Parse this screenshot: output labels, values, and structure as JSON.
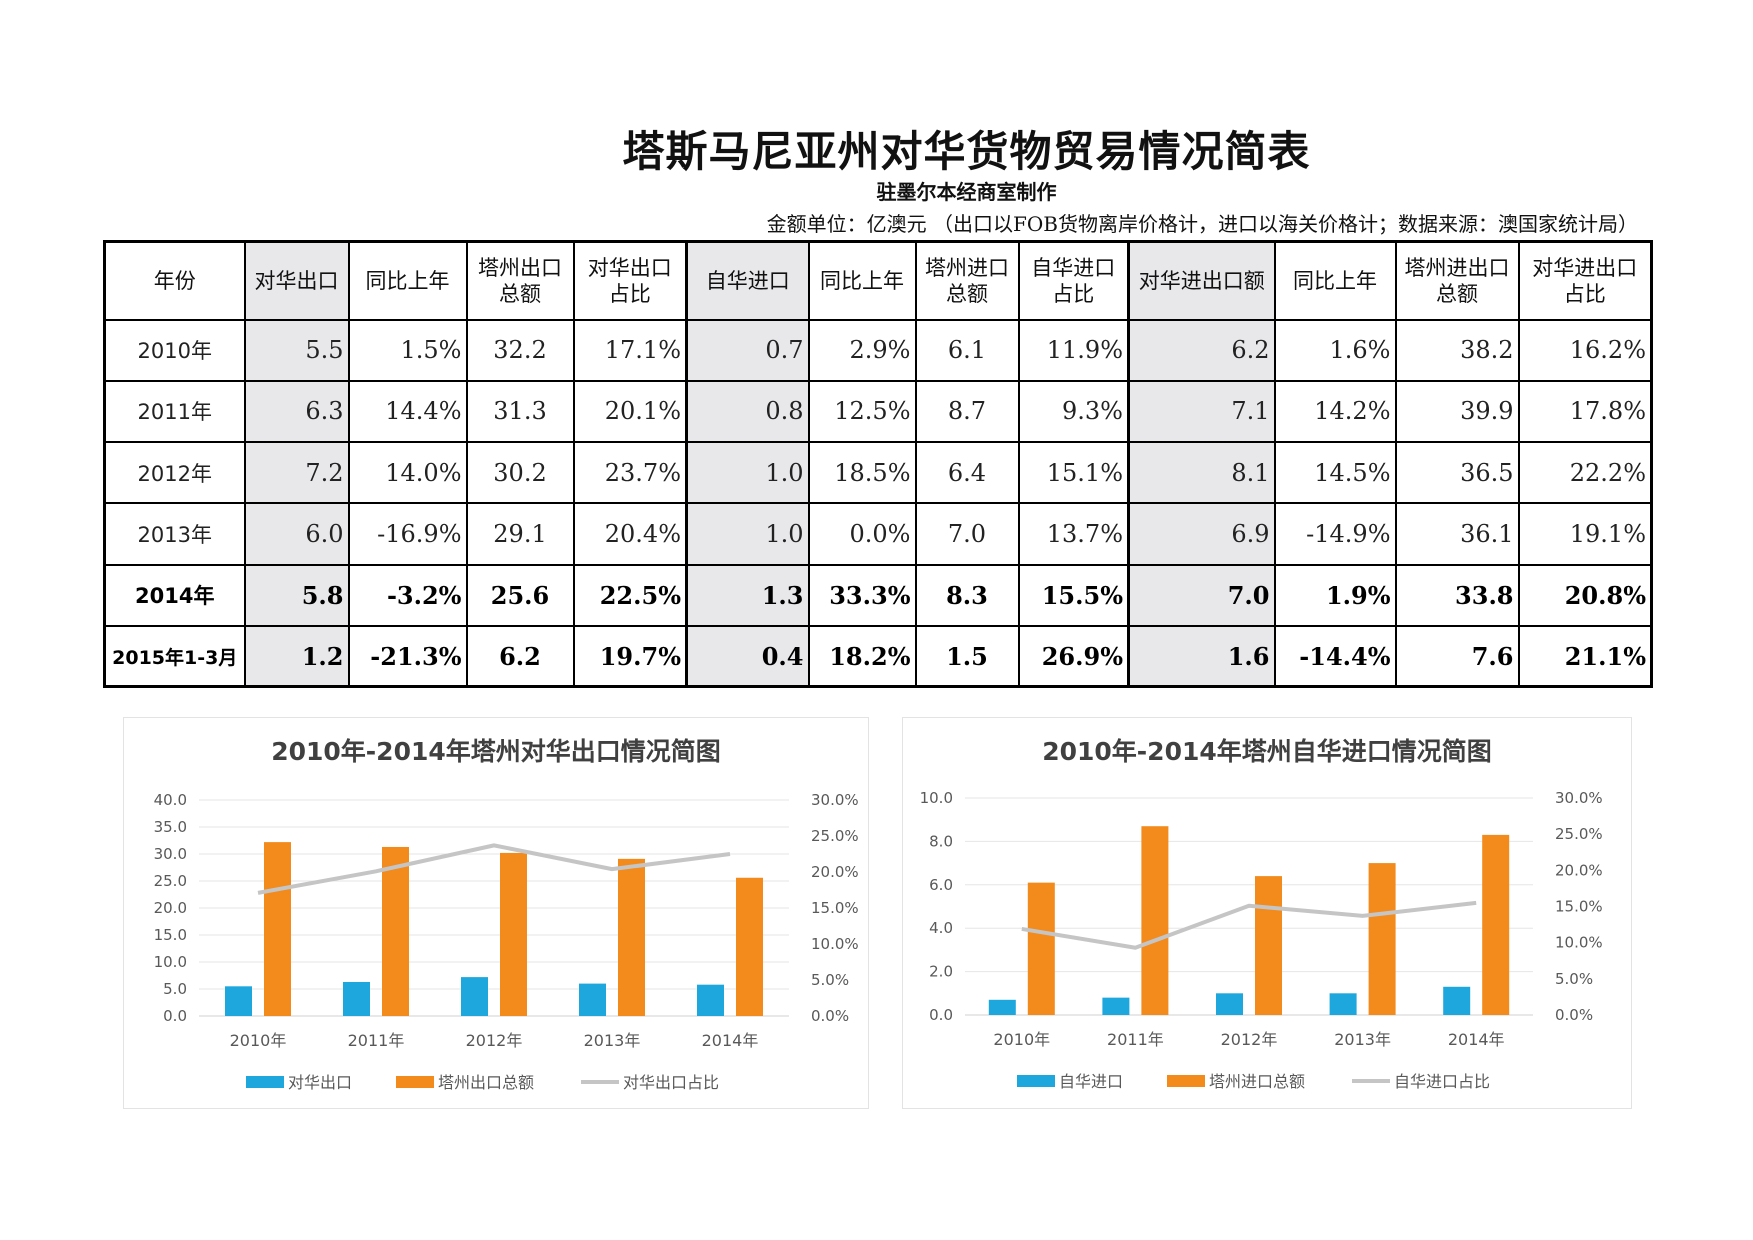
{
  "title": "塔斯马尼亚州对华货物贸易情况简表",
  "subtitle": "驻墨尔本经商室制作",
  "unit_note": "金额单位：亿澳元 （出口以FOB货物离岸价格计，进口以海关价格计；数据来源：澳国家统计局）",
  "table": {
    "headers": [
      "年份",
      "对华出口",
      "同比上年",
      "塔州出口总额",
      "对华出口占比",
      "自华进口",
      "同比上年",
      "塔州进口总额",
      "自华进口占比",
      "对华进出口额",
      "同比上年",
      "塔州进出口总额",
      "对华进出口占比"
    ],
    "rows": [
      [
        "2010年",
        "5.5",
        "1.5%",
        "32.2",
        "17.1%",
        "0.7",
        "2.9%",
        "6.1",
        "11.9%",
        "6.2",
        "1.6%",
        "38.2",
        "16.2%"
      ],
      [
        "2011年",
        "6.3",
        "14.4%",
        "31.3",
        "20.1%",
        "0.8",
        "12.5%",
        "8.7",
        "9.3%",
        "7.1",
        "14.2%",
        "39.9",
        "17.8%"
      ],
      [
        "2012年",
        "7.2",
        "14.0%",
        "30.2",
        "23.7%",
        "1.0",
        "18.5%",
        "6.4",
        "15.1%",
        "8.1",
        "14.5%",
        "36.5",
        "22.2%"
      ],
      [
        "2013年",
        "6.0",
        "-16.9%",
        "29.1",
        "20.4%",
        "1.0",
        "0.0%",
        "7.0",
        "13.7%",
        "6.9",
        "-14.9%",
        "36.1",
        "19.1%"
      ],
      [
        "2014年",
        "5.8",
        "-3.2%",
        "25.6",
        "22.5%",
        "1.3",
        "33.3%",
        "8.3",
        "15.5%",
        "7.0",
        "1.9%",
        "33.8",
        "20.8%"
      ],
      [
        "2015年1-3月",
        "1.2",
        "-21.3%",
        "6.2",
        "19.7%",
        "0.4",
        "18.2%",
        "1.5",
        "26.9%",
        "1.6",
        "-14.4%",
        "7.6",
        "21.1%"
      ]
    ]
  },
  "colors": {
    "bar1": "#1ea7dd",
    "bar2": "#f28a1c",
    "line": "#c5c5c5",
    "axis_text": "#595959"
  },
  "chart_data": [
    {
      "type": "bar",
      "title": "2010年-2014年塔州对华出口情况简图",
      "categories": [
        "2010年",
        "2011年",
        "2012年",
        "2013年",
        "2014年"
      ],
      "series": [
        {
          "name": "对华出口",
          "type": "bar",
          "axis": "left",
          "values": [
            5.5,
            6.3,
            7.2,
            6.0,
            5.8
          ]
        },
        {
          "name": "塔州出口总额",
          "type": "bar",
          "axis": "left",
          "values": [
            32.2,
            31.3,
            30.2,
            29.1,
            25.6
          ]
        },
        {
          "name": "对华出口占比",
          "type": "line",
          "axis": "right",
          "values": [
            17.1,
            20.1,
            23.7,
            20.4,
            22.5
          ]
        }
      ],
      "ylim": [
        0,
        40
      ],
      "yticks": [
        "0.0",
        "5.0",
        "10.0",
        "15.0",
        "20.0",
        "25.0",
        "30.0",
        "35.0",
        "40.0"
      ],
      "y2lim": [
        0,
        30
      ],
      "y2ticks": [
        "0.0%",
        "5.0%",
        "10.0%",
        "15.0%",
        "20.0%",
        "25.0%",
        "30.0%"
      ],
      "legend": "bottom",
      "grid": true
    },
    {
      "type": "bar",
      "title": "2010年-2014年塔州自华进口情况简图",
      "categories": [
        "2010年",
        "2011年",
        "2012年",
        "2013年",
        "2014年"
      ],
      "series": [
        {
          "name": "自华进口",
          "type": "bar",
          "axis": "left",
          "values": [
            0.7,
            0.8,
            1.0,
            1.0,
            1.3
          ]
        },
        {
          "name": "塔州进口总额",
          "type": "bar",
          "axis": "left",
          "values": [
            6.1,
            8.7,
            6.4,
            7.0,
            8.3
          ]
        },
        {
          "name": "自华进口占比",
          "type": "line",
          "axis": "right",
          "values": [
            11.9,
            9.3,
            15.1,
            13.7,
            15.5
          ]
        }
      ],
      "ylim": [
        0,
        10
      ],
      "yticks": [
        "0.0",
        "2.0",
        "4.0",
        "6.0",
        "8.0",
        "10.0"
      ],
      "y2lim": [
        0,
        30
      ],
      "y2ticks": [
        "0.0%",
        "5.0%",
        "10.0%",
        "15.0%",
        "20.0%",
        "25.0%",
        "30.0%"
      ],
      "legend": "bottom",
      "grid": true
    }
  ]
}
